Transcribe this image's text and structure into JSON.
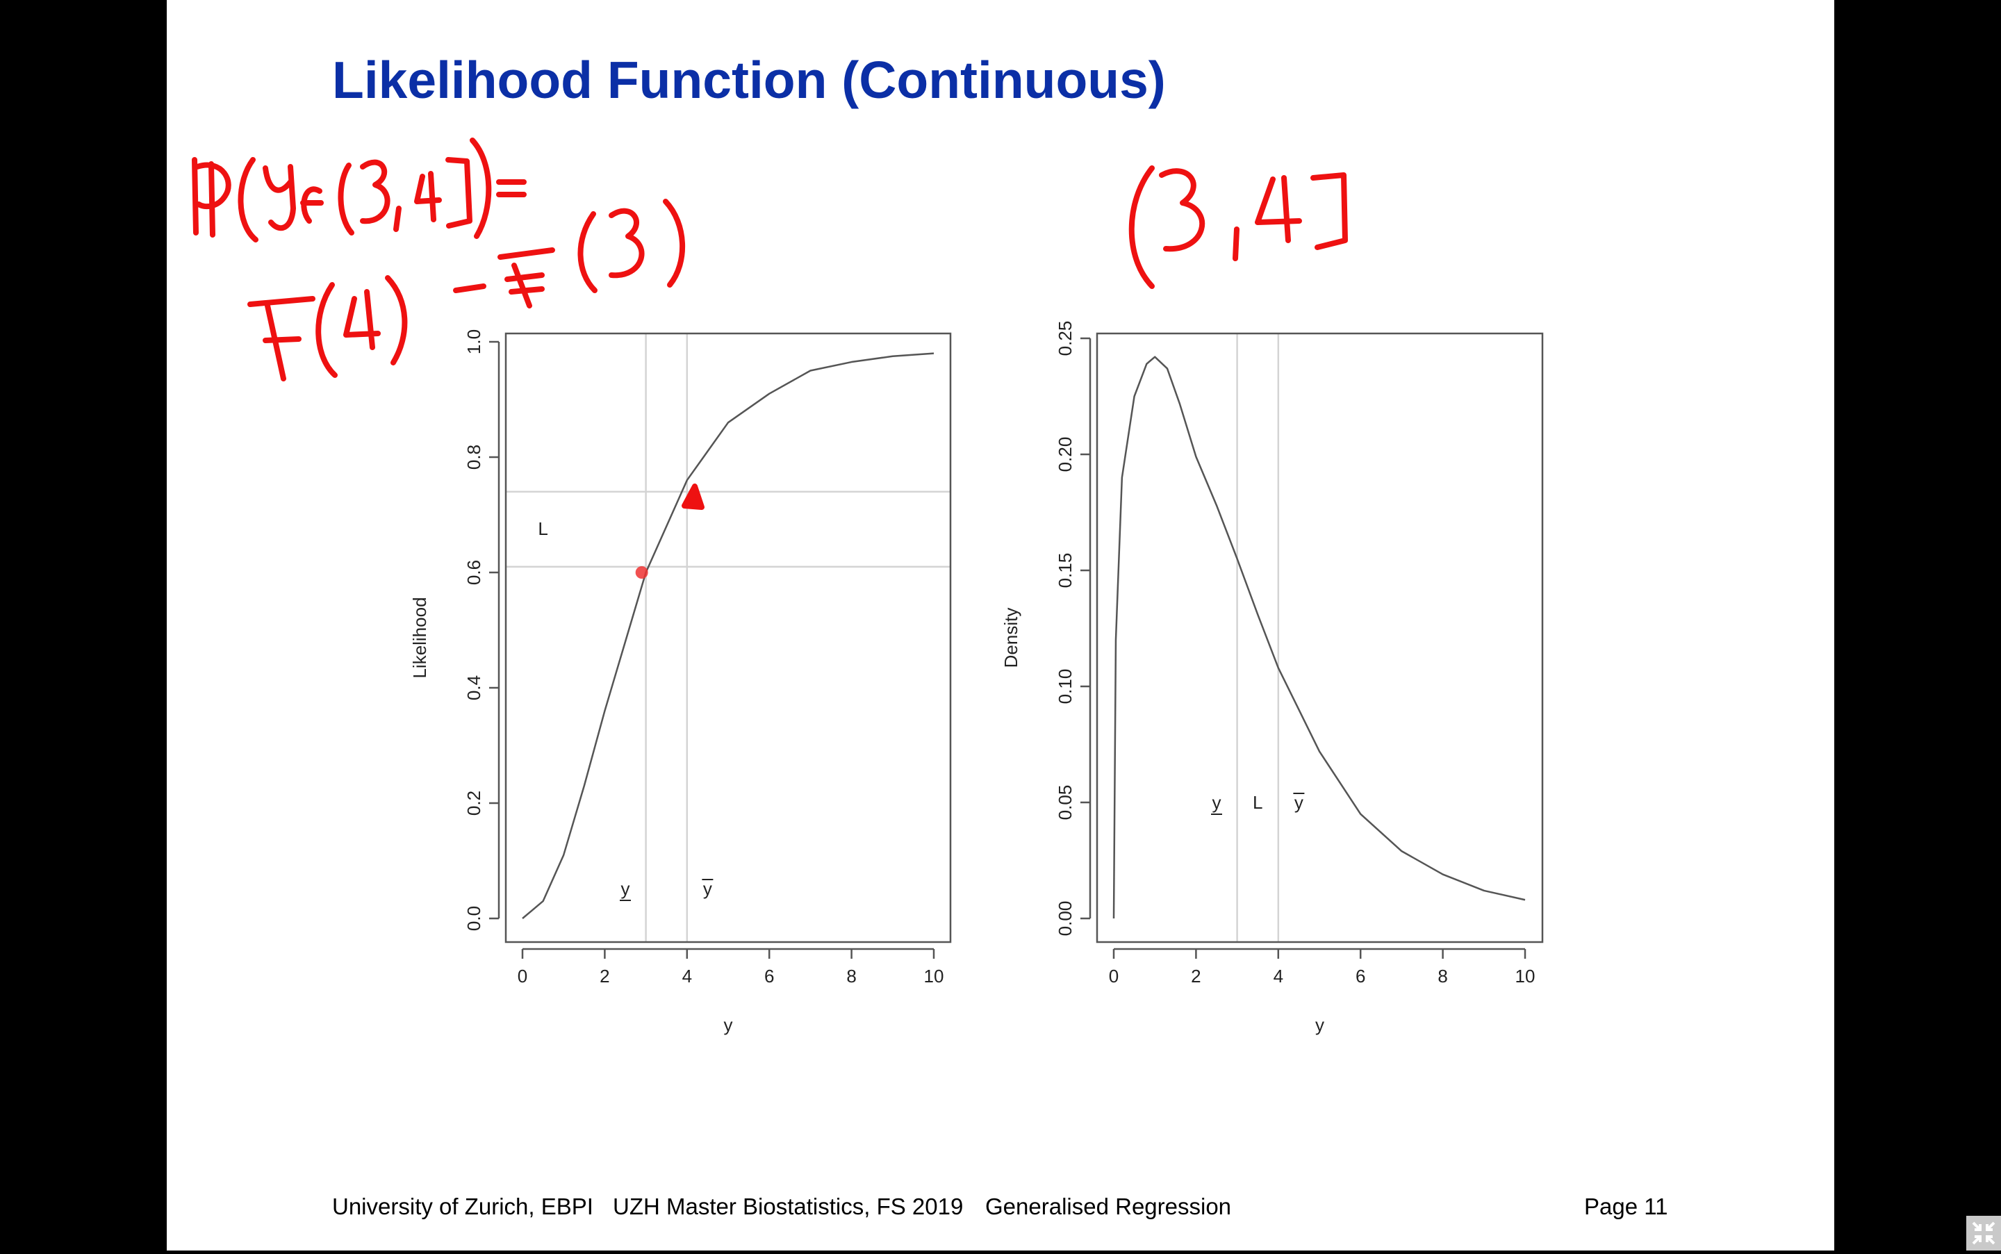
{
  "slide": {
    "title": "Likelihood Function (Continuous)",
    "footer": {
      "institution": "University of Zurich, EBPI",
      "program": "UZH Master Biostatistics, FS 2019",
      "course": "Generalised Regression",
      "page": "Page 11"
    }
  },
  "chart_data": [
    {
      "type": "line",
      "title": "",
      "xlabel": "y",
      "ylabel": "Likelihood",
      "xlim": [
        0,
        10
      ],
      "ylim": [
        0,
        1
      ],
      "x_ticks": [
        "0",
        "2",
        "4",
        "6",
        "8",
        "10"
      ],
      "y_ticks": [
        "0.0",
        "0.2",
        "0.4",
        "0.6",
        "0.8",
        "1.0"
      ],
      "x": [
        0,
        0.5,
        1,
        1.5,
        2,
        2.5,
        3,
        3.5,
        4,
        5,
        6,
        7,
        8,
        9,
        10
      ],
      "y": [
        0,
        0.03,
        0.11,
        0.23,
        0.36,
        0.48,
        0.6,
        0.68,
        0.76,
        0.86,
        0.91,
        0.95,
        0.965,
        0.975,
        0.98
      ],
      "vlines": [
        3,
        4
      ],
      "hlines": [
        0.61,
        0.74
      ],
      "point": {
        "x": 2.9,
        "y": 0.6
      },
      "labels": {
        "lower": "y",
        "upper": "y",
        "L": "L"
      },
      "grid": false,
      "legend": "none"
    },
    {
      "type": "line",
      "title": "",
      "xlabel": "y",
      "ylabel": "Density",
      "xlim": [
        0,
        10
      ],
      "ylim": [
        0,
        0.25
      ],
      "x_ticks": [
        "0",
        "2",
        "4",
        "6",
        "8",
        "10"
      ],
      "y_ticks": [
        "0.00",
        "0.05",
        "0.10",
        "0.15",
        "0.20",
        "0.25"
      ],
      "x": [
        0,
        0.05,
        0.2,
        0.5,
        0.8,
        1,
        1.3,
        1.6,
        2,
        2.5,
        3,
        3.5,
        4,
        5,
        6,
        7,
        8,
        9,
        10
      ],
      "y": [
        0,
        0.12,
        0.19,
        0.225,
        0.239,
        0.242,
        0.237,
        0.222,
        0.199,
        0.178,
        0.155,
        0.131,
        0.108,
        0.072,
        0.045,
        0.029,
        0.019,
        0.012,
        0.008
      ],
      "vlines": [
        3,
        4
      ],
      "labels": {
        "lower": "y",
        "upper": "y",
        "L": "L"
      },
      "grid": false,
      "legend": "none"
    }
  ],
  "handwriting": {
    "left": "P(y∈(3,4]) = F(4) − F(3)",
    "right": "(3,4]",
    "color": "#ee1111"
  },
  "icons": {
    "exit": "exit-fullscreen-icon"
  }
}
